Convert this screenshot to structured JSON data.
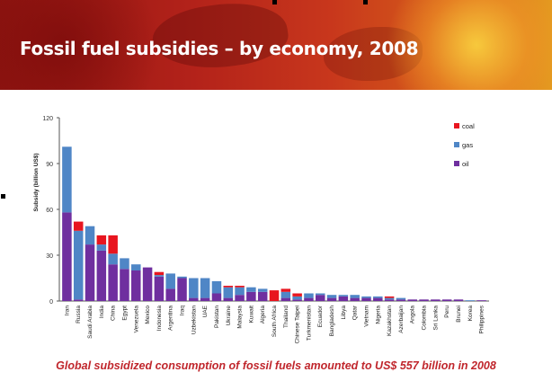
{
  "header": {
    "title": "Fossil fuel subsidies – by economy, 2008"
  },
  "footer": {
    "note": "Global subsidized consumption of fossil fuels amounted to US$ 557 billion in 2008"
  },
  "colors": {
    "coal": "#e8151f",
    "gas": "#4f86c6",
    "oil": "#6f2f9f"
  },
  "chart_data": {
    "type": "bar",
    "stacked": true,
    "title": "",
    "xlabel": "",
    "ylabel": "Subsidy (billion US$)",
    "ylim": [
      0,
      120
    ],
    "yticks": [
      0,
      30,
      60,
      90,
      120
    ],
    "grid": false,
    "legend_position": "top-right",
    "categories": [
      "Iran",
      "Russia",
      "Saudi Arabia",
      "India",
      "China",
      "Egypt",
      "Venezuela",
      "Mexico",
      "Indonesia",
      "Argentina",
      "Iraq",
      "Uzbekistan",
      "UAE",
      "Pakistan",
      "Ukraine",
      "Malaysia",
      "Kuwait",
      "Algeria",
      "South Africa",
      "Thailand",
      "Chinese Taipei",
      "Turkmenistan",
      "Ecuador",
      "Bangladesh",
      "Libya",
      "Qatar",
      "Vietnam",
      "Nigeria",
      "Kazakhstan",
      "Azerbaijan",
      "Angola",
      "Colombia",
      "Sri Lanka",
      "Peru",
      "Brunei",
      "Korea",
      "Philippines"
    ],
    "series": [
      {
        "name": "oil",
        "values": [
          58,
          1,
          37,
          33,
          24,
          21,
          20,
          22,
          16,
          8,
          15,
          2,
          2,
          5,
          2,
          4,
          6,
          6,
          0,
          2,
          1,
          2,
          4,
          2,
          3,
          2,
          2,
          2,
          1,
          1,
          1,
          1,
          1,
          1,
          1,
          0,
          0.5
        ]
      },
      {
        "name": "gas",
        "values": [
          43,
          45,
          12,
          4,
          7,
          7,
          4,
          0,
          1,
          10,
          1,
          13,
          13,
          8,
          7,
          5,
          3,
          2,
          0,
          4,
          2,
          3,
          1,
          2,
          1,
          2,
          1,
          1,
          1,
          1,
          0,
          0,
          0,
          0,
          0,
          0.5,
          0
        ]
      },
      {
        "name": "coal",
        "values": [
          0,
          6,
          0,
          6,
          12,
          0,
          0,
          0,
          2,
          0,
          0,
          0,
          0,
          0,
          1,
          1,
          0,
          0,
          7,
          2,
          2,
          0,
          0,
          0,
          0,
          0,
          0,
          0,
          1,
          0,
          0,
          0,
          0,
          0,
          0,
          0,
          0
        ]
      }
    ]
  }
}
